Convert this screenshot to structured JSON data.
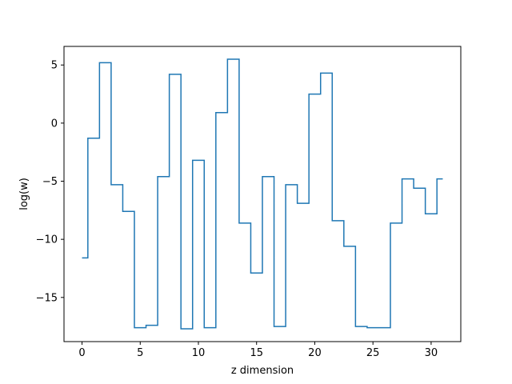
{
  "chart_data": {
    "type": "line",
    "drawstyle": "steps-mid",
    "xlabel": "z dimension",
    "ylabel": "log(w)",
    "xlim": [
      -1.55,
      32.55
    ],
    "ylim": [
      -18.8,
      6.6
    ],
    "xticks": [
      0,
      5,
      10,
      15,
      20,
      25,
      30
    ],
    "yticks": [
      -15,
      -10,
      -5,
      0,
      5
    ],
    "ytick_labels": [
      "−15",
      "−10",
      "−5",
      "0",
      "5"
    ],
    "grid": false,
    "series": [
      {
        "color": "#1f77b4",
        "x": [
          0,
          1,
          2,
          3,
          4,
          5,
          6,
          7,
          8,
          9,
          10,
          11,
          12,
          13,
          14,
          15,
          16,
          17,
          18,
          19,
          20,
          21,
          22,
          23,
          24,
          25,
          26,
          27,
          28,
          29,
          30,
          31
        ],
        "y": [
          -11.6,
          -1.3,
          5.2,
          -5.3,
          -7.6,
          -17.6,
          -17.4,
          -4.6,
          4.2,
          -17.7,
          -3.2,
          -17.6,
          0.9,
          5.5,
          -8.6,
          -12.9,
          -4.6,
          -17.5,
          -5.3,
          -6.9,
          2.5,
          4.3,
          -8.4,
          -10.6,
          -17.5,
          -17.6,
          -17.6,
          -8.6,
          -4.8,
          -5.6,
          -7.8,
          -4.8
        ]
      }
    ]
  }
}
